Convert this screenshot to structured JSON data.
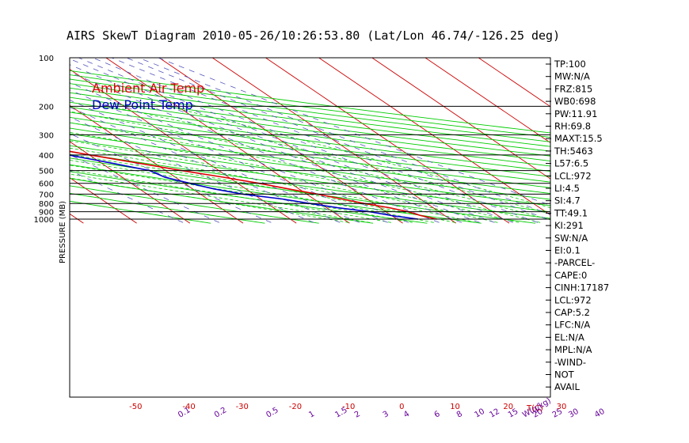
{
  "title": "AIRS SkewT Diagram 2010-05-26/10:26:53.80 (Lat/Lon 46.74/-126.25 deg)",
  "colors": {
    "axes": "#000000",
    "temp_tick": "#cc0000",
    "mix_label": "#660099",
    "isotherm": "#cc0000",
    "dry_adiabat": "#00cc00",
    "moist_adiabat": "#00cc00",
    "mixing_ratio": "#5555bb"
  },
  "chart_data": {
    "type": "line",
    "title": "AIRS SkewT Diagram 2010-05-26/10:26:53.80 (Lat/Lon 46.74/-126.25 deg)",
    "xlabel_bottom": "T(C)",
    "xlabel_mixing": "W(g/kg)",
    "ylabel": "PRESSURE (MB)",
    "y_scale": "log",
    "ylim": [
      1050,
      100
    ],
    "pressure_ticks": [
      100,
      200,
      300,
      400,
      500,
      600,
      700,
      800,
      900,
      1000
    ],
    "top_temp_ticks": [
      -120,
      -110,
      -100,
      -90,
      -80,
      -70,
      -60,
      -50,
      -40
    ],
    "bottom_temp_ticks": [
      -50,
      -40,
      -30,
      -20,
      -10,
      0,
      10,
      20,
      30
    ],
    "mixing_ratio_ticks": [
      "0.1",
      "0.2",
      "0.5",
      "1",
      "1.5",
      "2",
      "3",
      "4",
      "6",
      "8",
      "10",
      "12",
      "15",
      "20",
      "25",
      "30",
      "40"
    ],
    "legend": [
      {
        "name": "Ambient Air Temp",
        "color": "#dd0000"
      },
      {
        "name": "Dew Point Temp",
        "color": "#0000cc"
      }
    ],
    "series": [
      {
        "name": "Ambient Air Temp",
        "color": "#dd0000",
        "points": [
          [
            1000,
            7.5
          ],
          [
            950,
            5.5
          ],
          [
            900,
            4.2
          ],
          [
            850,
            1.8
          ],
          [
            800,
            -1.8
          ],
          [
            750,
            -4.8
          ],
          [
            700,
            -8
          ],
          [
            650,
            -12
          ],
          [
            600,
            -16
          ],
          [
            550,
            -21
          ],
          [
            500,
            -27
          ],
          [
            450,
            -33
          ],
          [
            400,
            -40
          ],
          [
            350,
            -47
          ],
          [
            300,
            -56
          ],
          [
            280,
            -55
          ],
          [
            250,
            -54
          ],
          [
            230,
            -55
          ],
          [
            210,
            -57
          ],
          [
            200,
            -57
          ],
          [
            180,
            -56
          ],
          [
            160,
            -56
          ],
          [
            150,
            -56
          ],
          [
            140,
            -56
          ],
          [
            130,
            -56
          ],
          [
            120,
            -57
          ],
          [
            110,
            -58
          ],
          [
            100,
            -60
          ]
        ]
      },
      {
        "name": "Dew Point Temp",
        "color": "#0000cc",
        "points": [
          [
            1000,
            4
          ],
          [
            950,
            0
          ],
          [
            900,
            -3
          ],
          [
            850,
            -8
          ],
          [
            800,
            -12
          ],
          [
            750,
            -16
          ],
          [
            700,
            -22
          ],
          [
            650,
            -26
          ],
          [
            600,
            -29
          ],
          [
            550,
            -32
          ],
          [
            500,
            -33
          ],
          [
            450,
            -38
          ],
          [
            400,
            -44
          ],
          [
            350,
            -52
          ],
          [
            300,
            -61
          ],
          [
            250,
            -71
          ],
          [
            200,
            -81
          ],
          [
            180,
            -85
          ],
          [
            160,
            -89
          ],
          [
            150,
            -91
          ],
          [
            140,
            -92
          ],
          [
            130,
            -93
          ],
          [
            120,
            -94
          ],
          [
            110,
            -95
          ],
          [
            100,
            -96
          ]
        ]
      }
    ]
  },
  "indices": [
    "TP:100",
    "MW:N/A",
    "FRZ:815",
    "WB0:698",
    "PW:11.91",
    "RH:69.8",
    "MAXT:15.5",
    "TH:5463",
    "L57:6.5",
    "LCL:972",
    "LI:4.5",
    "SI:4.7",
    "TT:49.1",
    "KI:291",
    "SW:N/A",
    "EI:0.1",
    "-PARCEL-",
    "CAPE:0",
    "CINH:17187",
    "LCL:972",
    "CAP:5.2",
    "LFC:N/A",
    "EL:N/A",
    "MPL:N/A",
    "-WIND-",
    "NOT",
    "AVAIL"
  ]
}
